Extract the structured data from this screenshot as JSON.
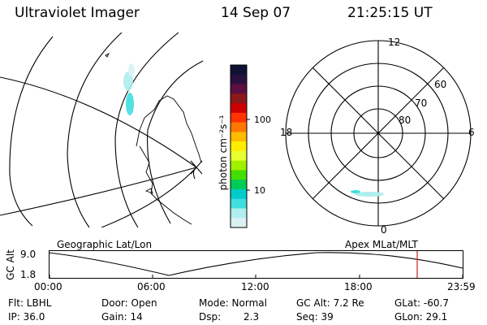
{
  "header": {
    "instrument": "Ultraviolet Imager",
    "date": "14 Sep 07",
    "time": "21:25:15 UT"
  },
  "geo_map": {
    "label": "Geographic Lat/Lon"
  },
  "colorbar": {
    "unit_label": "photon cm⁻²s⁻¹",
    "tick_labels": [
      "100",
      "10"
    ],
    "colors": [
      "#111133",
      "#2a1040",
      "#5a0f40",
      "#8a1a1a",
      "#cc0000",
      "#ff3300",
      "#ff7700",
      "#ffbb00",
      "#ffee00",
      "#e8ff30",
      "#a0f000",
      "#44dd00",
      "#00cc55",
      "#00cccc",
      "#40dede",
      "#aeeeee",
      "#dbf2f2"
    ]
  },
  "polar_plot": {
    "label": "Apex MLat/MLT",
    "mlt_labels": [
      "12",
      "18",
      "6",
      "0"
    ],
    "mlat_labels": [
      "60",
      "70",
      "80"
    ]
  },
  "altitude_panel": {
    "ylabel": "GC Alt",
    "y_ticks": [
      "9.0",
      "1.8"
    ],
    "x_ticks": [
      "00:00",
      "06:00",
      "12:00",
      "18:00",
      "23:59"
    ],
    "marker_color": "#cc2222"
  },
  "info": {
    "flt": "Flt: LBHL",
    "ip": "IP: 36.0",
    "door": "Door: Open",
    "gain": "Gain: 14",
    "mode": "Mode: Normal",
    "dsp_label": "Dsp:",
    "dsp_value": "2.3",
    "gc_alt": "GC Alt: 7.2 Re",
    "seq": "Seq: 39",
    "glat": "GLat: -60.7",
    "glon": "GLon: 29.1"
  }
}
